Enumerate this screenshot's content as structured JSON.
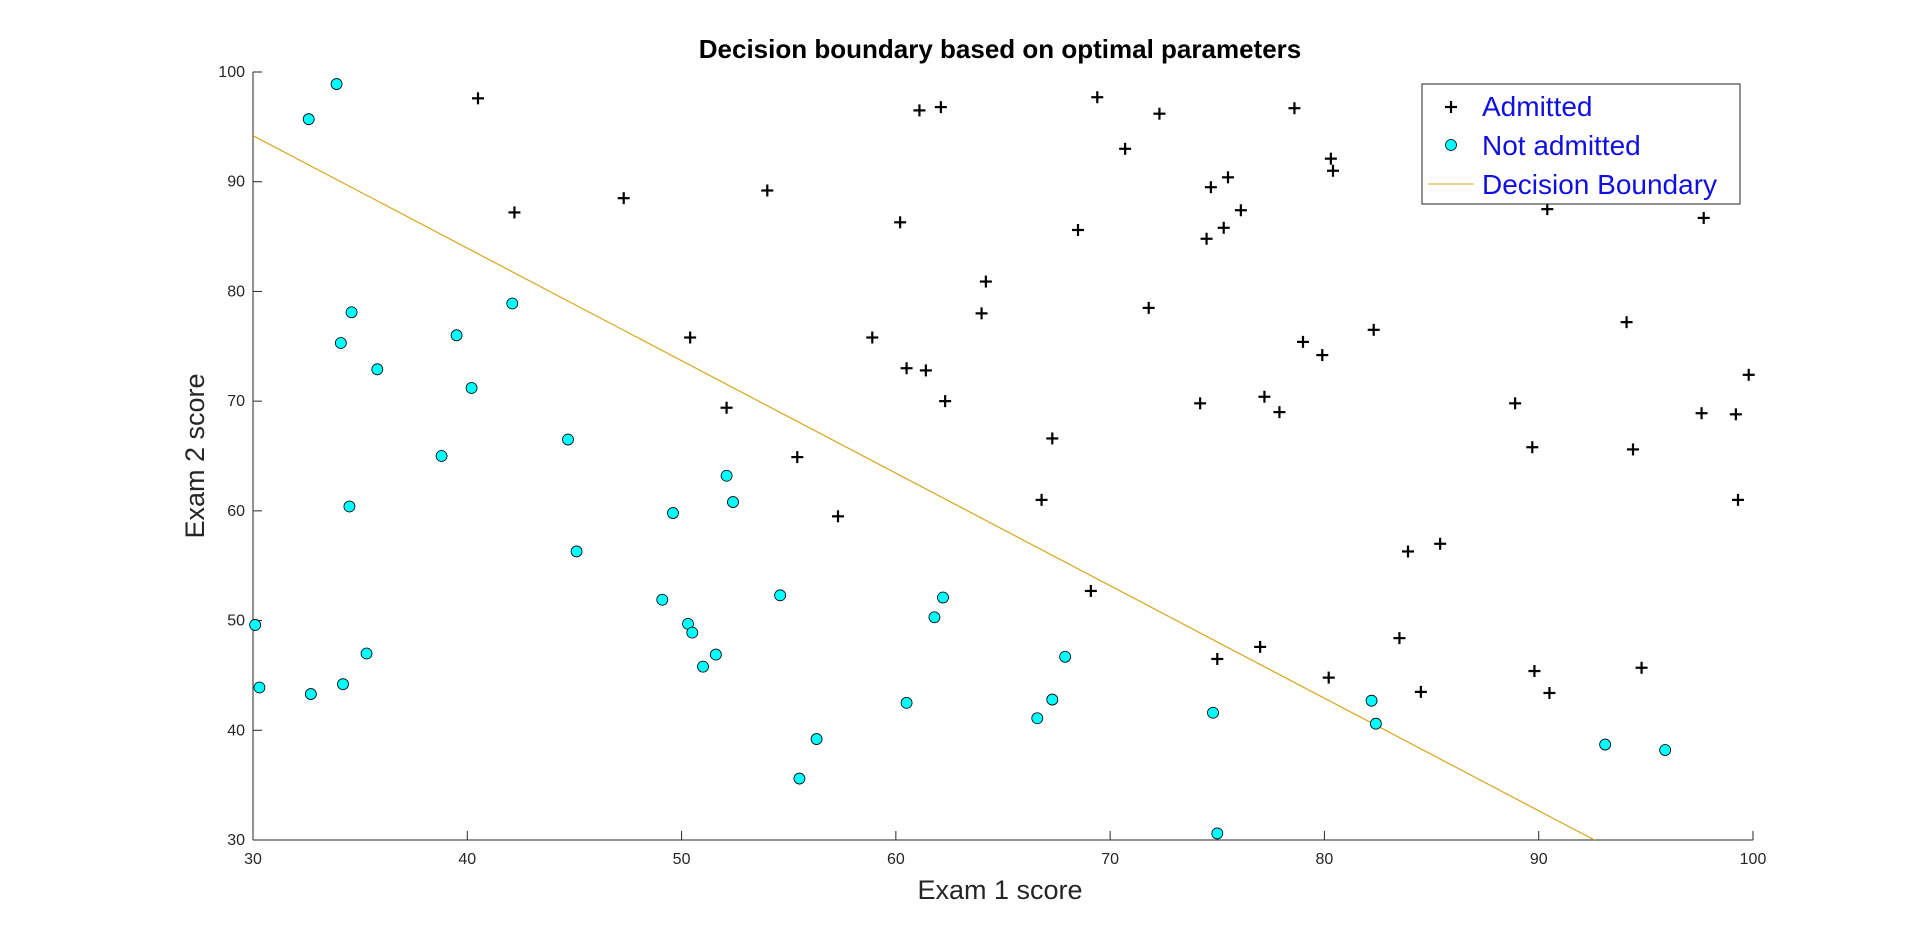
{
  "chart_data": {
    "type": "scatter",
    "title": "Decision boundary based on optimal parameters",
    "xlabel": "Exam 1 score",
    "ylabel": "Exam 2 score",
    "xlim": [
      30,
      100
    ],
    "ylim": [
      30,
      100
    ],
    "xticks": [
      30,
      40,
      50,
      60,
      70,
      80,
      90,
      100
    ],
    "yticks": [
      30,
      40,
      50,
      60,
      70,
      80,
      90,
      100
    ],
    "grid": false,
    "legend_position": "top-right",
    "series": [
      {
        "name": "Admitted",
        "marker": "plus",
        "color": "#000000",
        "points": [
          [
            40.5,
            97.6
          ],
          [
            42.2,
            87.2
          ],
          [
            47.3,
            88.5
          ],
          [
            54.0,
            89.2
          ],
          [
            50.4,
            75.8
          ],
          [
            52.1,
            69.4
          ],
          [
            55.4,
            64.9
          ],
          [
            57.3,
            59.5
          ],
          [
            58.9,
            75.8
          ],
          [
            60.2,
            86.3
          ],
          [
            60.5,
            73.0
          ],
          [
            61.1,
            96.5
          ],
          [
            61.4,
            72.8
          ],
          [
            62.1,
            96.8
          ],
          [
            62.3,
            70.0
          ],
          [
            64.0,
            78.0
          ],
          [
            64.2,
            80.9
          ],
          [
            66.8,
            61.0
          ],
          [
            67.3,
            66.6
          ],
          [
            68.5,
            85.6
          ],
          [
            69.1,
            52.7
          ],
          [
            69.4,
            97.7
          ],
          [
            70.7,
            93.0
          ],
          [
            71.8,
            78.5
          ],
          [
            72.3,
            96.2
          ],
          [
            74.2,
            69.8
          ],
          [
            74.5,
            84.8
          ],
          [
            74.7,
            89.5
          ],
          [
            75.0,
            46.5
          ],
          [
            75.3,
            85.8
          ],
          [
            75.5,
            90.4
          ],
          [
            76.1,
            87.4
          ],
          [
            77.0,
            47.6
          ],
          [
            77.2,
            70.4
          ],
          [
            77.9,
            69.0
          ],
          [
            78.6,
            96.7
          ],
          [
            79.0,
            75.4
          ],
          [
            79.9,
            74.2
          ],
          [
            80.2,
            44.8
          ],
          [
            80.3,
            92.1
          ],
          [
            80.4,
            91.0
          ],
          [
            82.3,
            76.5
          ],
          [
            83.5,
            48.4
          ],
          [
            83.9,
            56.3
          ],
          [
            84.5,
            43.5
          ],
          [
            85.4,
            57.0
          ],
          [
            88.9,
            69.8
          ],
          [
            89.7,
            65.8
          ],
          [
            89.8,
            45.4
          ],
          [
            90.4,
            87.5
          ],
          [
            90.5,
            43.4
          ],
          [
            94.1,
            77.2
          ],
          [
            94.4,
            65.6
          ],
          [
            94.8,
            45.7
          ],
          [
            97.6,
            68.9
          ],
          [
            97.7,
            86.7
          ],
          [
            99.2,
            68.8
          ],
          [
            99.3,
            61.0
          ],
          [
            99.8,
            72.4
          ]
        ]
      },
      {
        "name": "Not admitted",
        "marker": "circle",
        "color": "#00ffff",
        "points": [
          [
            30.1,
            49.6
          ],
          [
            30.3,
            43.9
          ],
          [
            32.6,
            95.7
          ],
          [
            32.7,
            43.3
          ],
          [
            33.9,
            98.9
          ],
          [
            34.1,
            75.3
          ],
          [
            34.2,
            44.2
          ],
          [
            34.5,
            60.4
          ],
          [
            34.6,
            78.1
          ],
          [
            35.3,
            47.0
          ],
          [
            35.8,
            72.9
          ],
          [
            38.8,
            65.0
          ],
          [
            39.5,
            76.0
          ],
          [
            40.2,
            71.2
          ],
          [
            42.1,
            78.9
          ],
          [
            44.7,
            66.5
          ],
          [
            45.1,
            56.3
          ],
          [
            49.1,
            51.9
          ],
          [
            49.6,
            59.8
          ],
          [
            50.3,
            49.7
          ],
          [
            50.5,
            48.9
          ],
          [
            51.0,
            45.8
          ],
          [
            51.6,
            46.9
          ],
          [
            52.1,
            63.2
          ],
          [
            52.4,
            60.8
          ],
          [
            54.6,
            52.3
          ],
          [
            55.5,
            35.6
          ],
          [
            56.3,
            39.2
          ],
          [
            60.5,
            42.5
          ],
          [
            61.8,
            50.3
          ],
          [
            62.2,
            52.1
          ],
          [
            66.6,
            41.1
          ],
          [
            67.3,
            42.8
          ],
          [
            67.9,
            46.7
          ],
          [
            74.8,
            41.6
          ],
          [
            75.0,
            30.6
          ],
          [
            82.2,
            42.7
          ],
          [
            82.4,
            40.6
          ],
          [
            93.1,
            38.7
          ],
          [
            95.9,
            38.2
          ]
        ]
      },
      {
        "name": "Decision Boundary",
        "marker": "line",
        "color": "#d9a520",
        "points": [
          [
            30.0,
            94.2
          ],
          [
            92.6,
            30.0
          ]
        ]
      }
    ]
  }
}
